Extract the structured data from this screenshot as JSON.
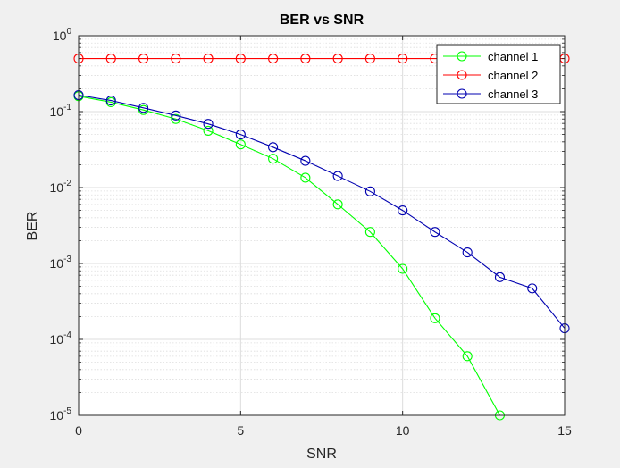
{
  "chart_data": {
    "type": "line",
    "title": "BER vs SNR",
    "xlabel": "SNR",
    "ylabel": "BER",
    "xlim": [
      0,
      15
    ],
    "ylim": [
      1e-05,
      1
    ],
    "yscale": "log",
    "grid": true,
    "legend_position": "top-right",
    "x_ticks": [
      0,
      5,
      10,
      15
    ],
    "y_ticks": [
      {
        "value": 1,
        "base": "10",
        "exp": "0"
      },
      {
        "value": 0.1,
        "base": "10",
        "exp": "-1"
      },
      {
        "value": 0.01,
        "base": "10",
        "exp": "-2"
      },
      {
        "value": 0.001,
        "base": "10",
        "exp": "-3"
      },
      {
        "value": 0.0001,
        "base": "10",
        "exp": "-4"
      },
      {
        "value": 1e-05,
        "base": "10",
        "exp": "-5"
      }
    ],
    "series": [
      {
        "name": "channel 1",
        "color": "#00ff00",
        "marker": "circle",
        "x": [
          0,
          1,
          2,
          3,
          4,
          5,
          6,
          7,
          8,
          9,
          10,
          11,
          12,
          13
        ],
        "values": [
          0.16,
          0.133,
          0.105,
          0.08,
          0.056,
          0.037,
          0.024,
          0.0135,
          0.006,
          0.0026,
          0.00085,
          0.00019,
          6e-05,
          1e-05
        ]
      },
      {
        "name": "channel 2",
        "color": "#ff0000",
        "marker": "circle",
        "x": [
          0,
          1,
          2,
          3,
          4,
          5,
          6,
          7,
          8,
          9,
          10,
          11,
          12,
          13,
          14,
          15
        ],
        "values": [
          0.5,
          0.5,
          0.5,
          0.5,
          0.5,
          0.5,
          0.5,
          0.5,
          0.5,
          0.5,
          0.5,
          0.5,
          0.5,
          0.5,
          0.5,
          0.5
        ]
      },
      {
        "name": "channel 3",
        "color": "#0000b0",
        "marker": "circle",
        "x": [
          0,
          1,
          2,
          3,
          4,
          5,
          6,
          7,
          8,
          9,
          10,
          11,
          12,
          13,
          14,
          15
        ],
        "values": [
          0.165,
          0.14,
          0.112,
          0.089,
          0.069,
          0.05,
          0.034,
          0.0225,
          0.0142,
          0.0089,
          0.005,
          0.0026,
          0.0014,
          0.00066,
          0.00047,
          0.00014
        ]
      }
    ]
  }
}
